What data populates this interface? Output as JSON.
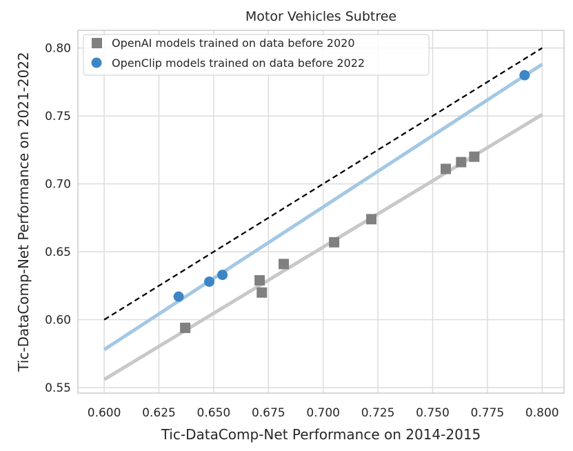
{
  "chart_data": {
    "type": "scatter",
    "title": "Motor Vehicles Subtree",
    "xlabel": "Tic-DataComp-Net Performance on 2014-2015",
    "ylabel": "Tic-DataComp-Net Performance on 2021-2022",
    "xlim": [
      0.588,
      0.81
    ],
    "ylim": [
      0.546,
      0.813
    ],
    "x_ticks": [
      "0.600",
      "0.625",
      "0.650",
      "0.675",
      "0.700",
      "0.725",
      "0.750",
      "0.775",
      "0.800"
    ],
    "y_ticks": [
      "0.55",
      "0.60",
      "0.65",
      "0.70",
      "0.75",
      "0.80"
    ],
    "grid": true,
    "legend_position": "top-left",
    "series": [
      {
        "name": "OpenAI models trained on data before 2020",
        "marker": "square",
        "color": "#808080",
        "points": [
          {
            "x": 0.637,
            "y": 0.594
          },
          {
            "x": 0.671,
            "y": 0.629
          },
          {
            "x": 0.672,
            "y": 0.62
          },
          {
            "x": 0.682,
            "y": 0.641
          },
          {
            "x": 0.705,
            "y": 0.657
          },
          {
            "x": 0.722,
            "y": 0.674
          },
          {
            "x": 0.756,
            "y": 0.711
          },
          {
            "x": 0.763,
            "y": 0.716
          },
          {
            "x": 0.769,
            "y": 0.72
          }
        ],
        "fit": {
          "x": [
            0.6,
            0.8
          ],
          "y": [
            0.556,
            0.751
          ],
          "color": "#c8c8c8"
        }
      },
      {
        "name": "OpenClip models trained on data before 2022",
        "marker": "circle",
        "color": "#3d86c6",
        "points": [
          {
            "x": 0.634,
            "y": 0.617
          },
          {
            "x": 0.648,
            "y": 0.628
          },
          {
            "x": 0.654,
            "y": 0.633
          },
          {
            "x": 0.792,
            "y": 0.78
          }
        ],
        "fit": {
          "x": [
            0.6,
            0.8
          ],
          "y": [
            0.578,
            0.788
          ],
          "color": "#a3c8e4"
        }
      }
    ],
    "reference_line": {
      "x": [
        0.6,
        0.8
      ],
      "y": [
        0.6,
        0.8
      ],
      "style": "dashed",
      "color": "#000000"
    }
  }
}
